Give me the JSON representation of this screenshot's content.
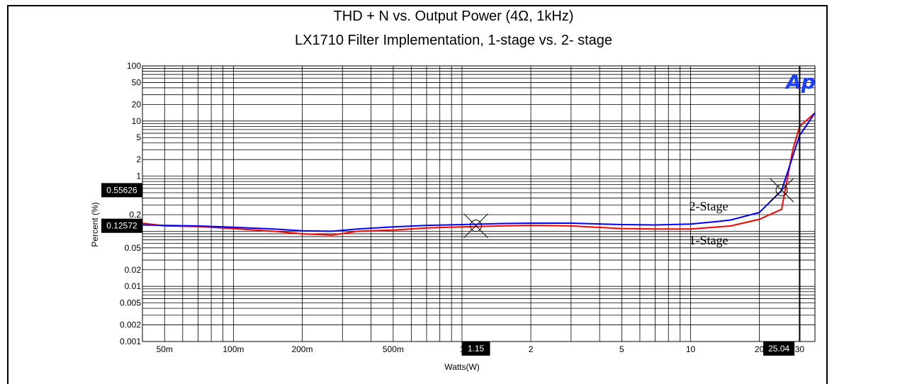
{
  "chart_data": {
    "type": "line",
    "title": "THD + N vs. Output Power (4Ω, 1kHz)",
    "subtitle": "LX1710 Filter Implementation, 1-stage vs. 2- stage",
    "xlabel": "Watts(W)",
    "ylabel": "Percent (%)",
    "xscale": "log",
    "yscale": "log",
    "xlim": [
      0.04,
      35
    ],
    "ylim": [
      0.001,
      100
    ],
    "grid": true,
    "x_ticks": [
      {
        "value": 0.05,
        "label": "50m"
      },
      {
        "value": 0.1,
        "label": "100m"
      },
      {
        "value": 0.2,
        "label": "200m"
      },
      {
        "value": 0.5,
        "label": "500m"
      },
      {
        "value": 1,
        "label": "1"
      },
      {
        "value": 2,
        "label": "2"
      },
      {
        "value": 5,
        "label": "5"
      },
      {
        "value": 10,
        "label": "10"
      },
      {
        "value": 20,
        "label": "20"
      },
      {
        "value": 30,
        "label": "30"
      }
    ],
    "y_ticks": [
      {
        "value": 100,
        "label": "100"
      },
      {
        "value": 50,
        "label": "50"
      },
      {
        "value": 20,
        "label": "20"
      },
      {
        "value": 10,
        "label": "10"
      },
      {
        "value": 5,
        "label": "5"
      },
      {
        "value": 2,
        "label": "2"
      },
      {
        "value": 1,
        "label": "1"
      },
      {
        "value": 0.5,
        "label": "0.5"
      },
      {
        "value": 0.2,
        "label": "0.2"
      },
      {
        "value": 0.05,
        "label": "0.05"
      },
      {
        "value": 0.02,
        "label": "0.02"
      },
      {
        "value": 0.01,
        "label": "0.01"
      },
      {
        "value": 0.005,
        "label": "0.005"
      },
      {
        "value": 0.002,
        "label": "0.002"
      },
      {
        "value": 0.001,
        "label": "0.001"
      }
    ],
    "series": [
      {
        "name": "1-Stage",
        "color": "#ff0000",
        "points": [
          [
            0.04,
            0.14
          ],
          [
            0.05,
            0.125
          ],
          [
            0.07,
            0.122
          ],
          [
            0.1,
            0.112
          ],
          [
            0.15,
            0.1
          ],
          [
            0.2,
            0.09
          ],
          [
            0.27,
            0.085
          ],
          [
            0.35,
            0.1
          ],
          [
            0.5,
            0.105
          ],
          [
            0.7,
            0.115
          ],
          [
            1,
            0.12
          ],
          [
            1.5,
            0.125
          ],
          [
            2,
            0.128
          ],
          [
            3,
            0.125
          ],
          [
            5,
            0.112
          ],
          [
            7,
            0.11
          ],
          [
            10,
            0.11
          ],
          [
            15,
            0.125
          ],
          [
            20,
            0.165
          ],
          [
            25,
            0.25
          ],
          [
            28,
            3.0
          ],
          [
            30,
            8.0
          ],
          [
            35,
            14.0
          ]
        ]
      },
      {
        "name": "2-Stage",
        "color": "#0000ff",
        "points": [
          [
            0.04,
            0.13
          ],
          [
            0.05,
            0.128
          ],
          [
            0.07,
            0.125
          ],
          [
            0.1,
            0.118
          ],
          [
            0.15,
            0.11
          ],
          [
            0.2,
            0.102
          ],
          [
            0.27,
            0.1
          ],
          [
            0.35,
            0.11
          ],
          [
            0.5,
            0.12
          ],
          [
            0.7,
            0.128
          ],
          [
            1,
            0.132
          ],
          [
            1.5,
            0.138
          ],
          [
            2,
            0.14
          ],
          [
            3,
            0.14
          ],
          [
            5,
            0.132
          ],
          [
            7,
            0.13
          ],
          [
            10,
            0.135
          ],
          [
            13,
            0.15
          ],
          [
            15,
            0.16
          ],
          [
            20,
            0.22
          ],
          [
            25,
            0.55
          ],
          [
            30,
            5.5
          ],
          [
            35,
            14.0
          ]
        ]
      }
    ],
    "annotations": [
      {
        "text": "2-Stage",
        "x": 10.0,
        "y": 0.24
      },
      {
        "text": "1-Stage",
        "x": 10.0,
        "y": 0.058
      }
    ],
    "cursors": {
      "x_left_label": "1.15",
      "x_right_label": "25.04",
      "y_upper_label": "0.55626",
      "y_lower_label": "0.12572",
      "markers": [
        [
          1.15,
          0.1257
        ],
        [
          25.04,
          0.5563
        ]
      ],
      "vertical_line_x": 30
    },
    "logo_text": "Ap"
  }
}
